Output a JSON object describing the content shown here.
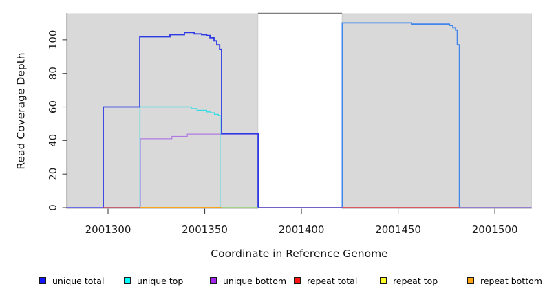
{
  "chart_data": {
    "type": "line",
    "subtype": "step-coverage-plot",
    "title": "",
    "xlabel": "Coordinate in Reference Genome",
    "ylabel": "Read Coverage Depth",
    "x_range": [
      2001279,
      2001519
    ],
    "y_range": [
      -0.4,
      115.5
    ],
    "x_ticks": [
      2001300,
      2001350,
      2001400,
      2001450,
      2001500
    ],
    "y_ticks": [
      0,
      20,
      40,
      60,
      80,
      100
    ],
    "grid": "off",
    "legend_position": "bottom",
    "background_regions": [
      {
        "name": "covered-left",
        "x1": 2001279,
        "x2": 2001377.5,
        "fill": "#d9d9d9"
      },
      {
        "name": "gap-white",
        "x1": 2001377.5,
        "x2": 2001421,
        "fill": "#ffffff"
      },
      {
        "name": "covered-right",
        "x1": 2001421,
        "x2": 2001519,
        "fill": "#d9d9d9"
      }
    ],
    "series": [
      {
        "name": "repeat top",
        "color": "#f5f500",
        "width": 1.2,
        "points": [
          [
            2001279,
            0
          ],
          [
            2001519,
            0
          ]
        ]
      },
      {
        "name": "repeat bottom",
        "color": "#ffa500",
        "width": 1.2,
        "points": [
          [
            2001279,
            0
          ],
          [
            2001519,
            0
          ]
        ]
      },
      {
        "name": "repeat total",
        "color": "#dc2840",
        "width": 1.2,
        "points": [
          [
            2001279,
            0
          ],
          [
            2001519,
            0
          ]
        ]
      },
      {
        "name": "unique bottom",
        "color": "#b07ae2",
        "width": 1.2,
        "points": [
          [
            2001279,
            0
          ],
          [
            2001316.7,
            41
          ],
          [
            2001333,
            42.4
          ],
          [
            2001341,
            43.8
          ],
          [
            2001377.7,
            0
          ]
        ]
      },
      {
        "name": "unique top",
        "color": "#35dde6",
        "width": 1.4,
        "points": [
          [
            2001279,
            0
          ],
          [
            2001316.5,
            60
          ],
          [
            2001343,
            59
          ],
          [
            2001346,
            58
          ],
          [
            2001351,
            57
          ],
          [
            2001353,
            56.5
          ],
          [
            2001355,
            55.5
          ],
          [
            2001357,
            54.8
          ],
          [
            2001357.9,
            0
          ]
        ]
      },
      {
        "name": "unique total",
        "part": "left",
        "color": "#2d3ae3",
        "width": 1.8,
        "points": [
          [
            2001279,
            0
          ],
          [
            2001297.5,
            60
          ],
          [
            2001316.4,
            101.8
          ],
          [
            2001332,
            103
          ],
          [
            2001339.5,
            104.3
          ],
          [
            2001344.5,
            103.5
          ],
          [
            2001348.4,
            103
          ],
          [
            2001351,
            102.5
          ],
          [
            2001352.7,
            101.2
          ],
          [
            2001354.8,
            99.4
          ],
          [
            2001356.2,
            97
          ],
          [
            2001357.7,
            94.3
          ],
          [
            2001358.7,
            44
          ],
          [
            2001377.6,
            0
          ]
        ]
      },
      {
        "name": "unique total",
        "part": "right",
        "color": "#4086ec",
        "width": 1.8,
        "points": [
          [
            2001420.9,
            0
          ],
          [
            2001421.1,
            110
          ],
          [
            2001456.9,
            109.3
          ],
          [
            2001476.5,
            108.5
          ],
          [
            2001478.3,
            107.2
          ],
          [
            2001479.7,
            105.8
          ],
          [
            2001480.6,
            97
          ],
          [
            2001481.7,
            0
          ]
        ]
      }
    ],
    "baseline_segments": [
      {
        "x1": 2001279,
        "x2": 2001297.5,
        "color": "#7b72ee"
      },
      {
        "x1": 2001297.5,
        "x2": 2001316.4,
        "color": "#d8415f"
      },
      {
        "x1": 2001316.4,
        "x2": 2001358.6,
        "color": "#ffa500"
      },
      {
        "x1": 2001358.6,
        "x2": 2001377.5,
        "color": "#8fe08f"
      },
      {
        "x1": 2001377.5,
        "x2": 2001421,
        "color": "#4646dd"
      },
      {
        "x1": 2001421,
        "x2": 2001481.7,
        "color": "#d8415f"
      },
      {
        "x1": 2001481.7,
        "x2": 2001519,
        "color": "#7b72ee"
      }
    ]
  },
  "legend": {
    "items": [
      {
        "label": "unique total",
        "color": "#1414ff"
      },
      {
        "label": "unique top",
        "color": "#00ffff"
      },
      {
        "label": "unique bottom",
        "color": "#a226f0"
      },
      {
        "label": "repeat total",
        "color": "#ff1414"
      },
      {
        "label": "repeat top",
        "color": "#ffff28"
      },
      {
        "label": "repeat bottom",
        "color": "#ffa514"
      }
    ]
  },
  "colors": {
    "plot_background": "#d9d9d9",
    "gap_background": "#ffffff",
    "rect_border": "#c8c8c8",
    "gap_top_line": "#7d7d7d",
    "axis_line": "#454545",
    "tick_text": "#1a1a1a"
  }
}
